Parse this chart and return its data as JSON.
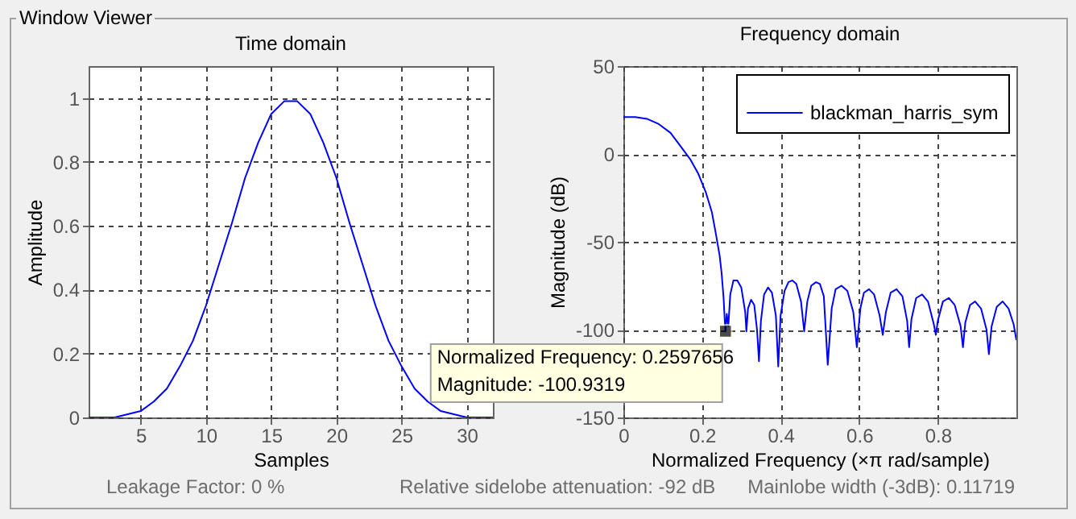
{
  "chart_data": [
    {
      "type": "line",
      "title": "Time domain",
      "xlabel": "Samples",
      "ylabel": "Amplitude",
      "x": [
        1,
        2,
        3,
        4,
        5,
        6,
        7,
        8,
        9,
        10,
        11,
        12,
        13,
        14,
        15,
        16,
        17,
        18,
        19,
        20,
        21,
        22,
        23,
        24,
        25,
        26,
        27,
        28,
        29,
        30,
        31,
        32
      ],
      "series": [
        {
          "color": "#0000ff",
          "values": [
            0,
            0,
            0,
            0.01,
            0.02,
            0.05,
            0.09,
            0.16,
            0.24,
            0.35,
            0.48,
            0.61,
            0.75,
            0.86,
            0.95,
            0.99,
            0.99,
            0.95,
            0.86,
            0.75,
            0.61,
            0.48,
            0.35,
            0.24,
            0.16,
            0.09,
            0.05,
            0.02,
            0.01,
            0,
            0,
            0
          ]
        }
      ],
      "xlim": [
        1,
        32
      ],
      "xticks": [
        5,
        10,
        15,
        20,
        25,
        30
      ],
      "ylim": [
        0,
        1.1
      ],
      "yticks": [
        0,
        0.2,
        0.4,
        0.6,
        0.8,
        1
      ],
      "grid": true,
      "annotations": [
        "Window Viewer",
        "Leakage Factor: 0 %"
      ]
    },
    {
      "type": "line",
      "title": "Frequency domain",
      "xlabel": "Normalized Frequency  (×π rad/sample)",
      "ylabel": "Magnitude (dB)",
      "x": [
        0,
        0.03,
        0.06,
        0.09,
        0.12,
        0.15,
        0.17,
        0.19,
        0.21,
        0.225,
        0.235,
        0.245,
        0.25,
        0.255,
        0.258,
        0.2597656,
        0.263,
        0.267,
        0.272,
        0.28,
        0.29,
        0.3,
        0.31,
        0.313,
        0.317,
        0.325,
        0.333,
        0.34,
        0.345,
        0.35,
        0.358,
        0.368,
        0.378,
        0.388,
        0.394,
        0.4,
        0.41,
        0.42,
        0.43,
        0.44,
        0.452,
        0.46,
        0.468,
        0.478,
        0.49,
        0.5,
        0.51,
        0.52,
        0.53,
        0.54,
        0.555,
        0.57,
        0.585,
        0.594,
        0.603,
        0.612,
        0.625,
        0.638,
        0.652,
        0.66,
        0.668,
        0.68,
        0.695,
        0.71,
        0.722,
        0.727,
        0.733,
        0.745,
        0.76,
        0.775,
        0.79,
        0.795,
        0.8,
        0.813,
        0.828,
        0.843,
        0.858,
        0.864,
        0.87,
        0.882,
        0.895,
        0.91,
        0.924,
        0.93,
        0.937,
        0.95,
        0.965,
        0.98,
        0.993,
        1
      ],
      "series": [
        {
          "name": "blackman_harris_sym",
          "color": "#0000ff",
          "values": [
            21,
            21,
            20,
            17,
            12,
            3,
            -3,
            -11,
            -22,
            -33,
            -45,
            -58,
            -68,
            -82,
            -95,
            -101,
            -91,
            -98,
            -80,
            -72,
            -72,
            -76,
            -90,
            -101,
            -88,
            -83,
            -86,
            -100,
            -118,
            -95,
            -80,
            -76,
            -79,
            -92,
            -121,
            -92,
            -78,
            -73,
            -72,
            -74,
            -84,
            -101,
            -84,
            -75,
            -73,
            -74,
            -81,
            -120,
            -88,
            -77,
            -75,
            -78,
            -90,
            -110,
            -88,
            -79,
            -77,
            -80,
            -92,
            -103,
            -90,
            -79,
            -77,
            -81,
            -95,
            -110,
            -94,
            -82,
            -80,
            -84,
            -97,
            -103,
            -95,
            -84,
            -82,
            -86,
            -98,
            -110,
            -96,
            -86,
            -84,
            -88,
            -100,
            -114,
            -98,
            -87,
            -84,
            -88,
            -97,
            -106
          ]
        }
      ],
      "xlim": [
        0,
        1
      ],
      "xticks": [
        0,
        0.2,
        0.4,
        0.6,
        0.8
      ],
      "ylim": [
        -150,
        50
      ],
      "yticks": [
        -150,
        -100,
        -50,
        0,
        50
      ],
      "grid": true,
      "legend": "top right",
      "annotations": [
        "Relative sidelobe attenuation: -92 dB",
        "Mainlobe width (-3dB): 0.11719",
        {
          "text": "Normalized Frequency: 0.2597656\nMagnitude: -100.9319",
          "x": 0.2597656,
          "y": -100.9319
        }
      ]
    }
  ]
}
